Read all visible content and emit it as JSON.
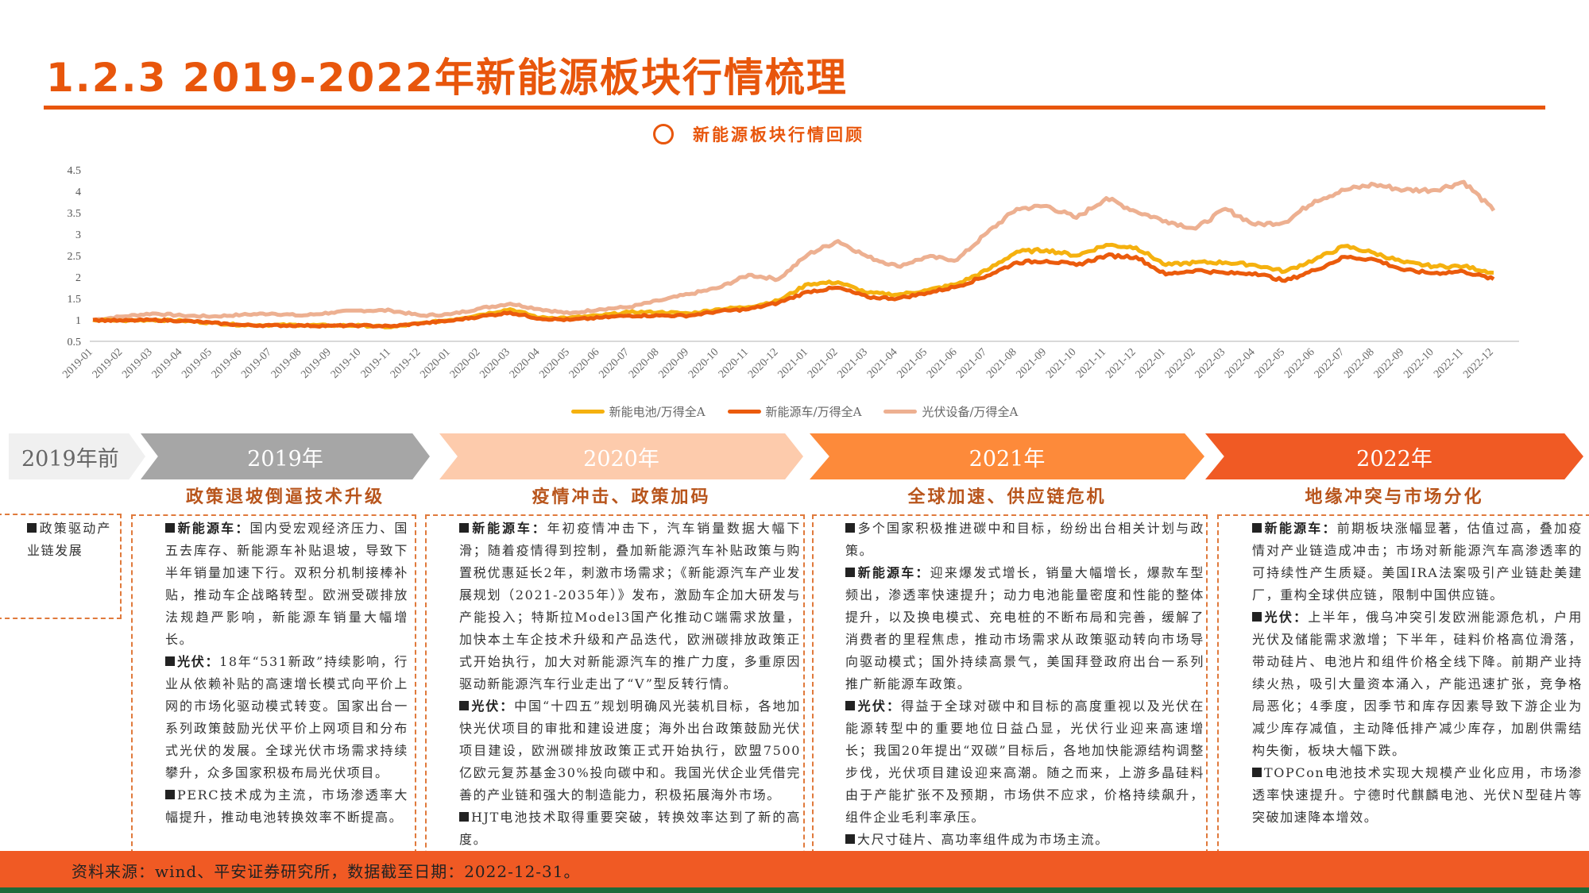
{
  "header": {
    "title": "1.2.3 2019-2022年新能源板块行情梳理",
    "subtitle": "新能源板块行情回顾"
  },
  "colors": {
    "accent": "#E8560C",
    "battery": "#F5B10F",
    "vehicle": "#EB5B0C",
    "pv": "#EDB091"
  },
  "chart_data": {
    "type": "line",
    "title": "",
    "xlabel": "",
    "ylabel": "",
    "ylim": [
      0.5,
      4.5
    ],
    "yticks": [
      "0.5",
      "1",
      "1.5",
      "2",
      "2.5",
      "3",
      "3.5",
      "4",
      "4.5"
    ],
    "grid": false,
    "legend_position": "bottom",
    "x": [
      "2019-01",
      "2019-02",
      "2019-03",
      "2019-04",
      "2019-05",
      "2019-06",
      "2019-07",
      "2019-08",
      "2019-09",
      "2019-10",
      "2019-11",
      "2019-12",
      "2020-01",
      "2020-02",
      "2020-03",
      "2020-04",
      "2020-05",
      "2020-06",
      "2020-07",
      "2020-08",
      "2020-09",
      "2020-10",
      "2020-11",
      "2020-12",
      "2021-01",
      "2021-02",
      "2021-03",
      "2021-04",
      "2021-05",
      "2021-06",
      "2021-07",
      "2021-08",
      "2021-09",
      "2021-10",
      "2021-11",
      "2021-12",
      "2022-01",
      "2022-02",
      "2022-03",
      "2022-04",
      "2022-05",
      "2022-06",
      "2022-07",
      "2022-08",
      "2022-09",
      "2022-10",
      "2022-11",
      "2022-12"
    ],
    "series": [
      {
        "name": "新能电池/万得全A",
        "color": "#F5B10F",
        "values": [
          1.0,
          0.98,
          1.0,
          0.98,
          0.93,
          0.88,
          0.88,
          0.88,
          0.87,
          0.87,
          0.83,
          0.92,
          1.0,
          1.12,
          1.25,
          1.05,
          1.05,
          1.1,
          1.18,
          1.18,
          1.15,
          1.25,
          1.3,
          1.45,
          1.84,
          1.88,
          1.63,
          1.59,
          1.69,
          1.84,
          2.16,
          2.59,
          2.63,
          2.5,
          2.75,
          2.69,
          2.28,
          2.34,
          2.34,
          2.28,
          2.13,
          2.41,
          2.72,
          2.56,
          2.34,
          2.25,
          2.25,
          2.1
        ]
      },
      {
        "name": "新能源车/万得全A",
        "color": "#EB5B0C",
        "values": [
          1.0,
          0.98,
          1.0,
          0.98,
          0.93,
          0.88,
          0.87,
          0.87,
          0.86,
          0.87,
          0.85,
          0.92,
          0.98,
          1.08,
          1.17,
          1.03,
          1.0,
          1.05,
          1.1,
          1.1,
          1.1,
          1.2,
          1.25,
          1.4,
          1.66,
          1.75,
          1.53,
          1.5,
          1.63,
          1.78,
          2.03,
          2.34,
          2.38,
          2.28,
          2.5,
          2.47,
          2.06,
          2.16,
          2.09,
          2.09,
          1.91,
          2.16,
          2.47,
          2.41,
          2.16,
          2.09,
          2.13,
          1.95
        ]
      },
      {
        "name": "光伏设备/万得全A",
        "color": "#EDB091",
        "values": [
          1.0,
          1.08,
          1.15,
          1.1,
          1.08,
          1.12,
          1.15,
          1.1,
          1.17,
          1.22,
          1.22,
          1.1,
          1.13,
          1.27,
          1.38,
          1.25,
          1.15,
          1.25,
          1.3,
          1.45,
          1.6,
          1.75,
          2.05,
          1.95,
          2.53,
          2.84,
          2.47,
          2.25,
          2.47,
          2.4,
          3.03,
          3.59,
          3.66,
          3.38,
          3.84,
          3.53,
          3.31,
          3.13,
          3.59,
          3.22,
          3.28,
          3.78,
          4.03,
          4.16,
          4.03,
          4.03,
          4.22,
          3.55
        ]
      }
    ]
  },
  "timeline": [
    {
      "label": "2019年前",
      "heading": ""
    },
    {
      "label": "2019年",
      "heading": "政策退坡倒逼技术升级"
    },
    {
      "label": "2020年",
      "heading": "疫情冲击、政策加码"
    },
    {
      "label": "2021年",
      "heading": "全球加速、供应链危机"
    },
    {
      "label": "2022年",
      "heading": "地缘冲突与市场分化"
    }
  ],
  "columns": {
    "pre2019": {
      "text": "政策驱动产业链发展"
    },
    "y2019": [
      {
        "lead": "新能源车：",
        "text": "国内受宏观经济压力、国五去库存、新能源车补贴退坡，导致下半年销量加速下行。双积分机制接棒补贴，推动车企战略转型。欧洲受碳排放法规趋严影响，新能源车销量大幅增长。"
      },
      {
        "lead": "光伏：",
        "text": "18年“531新政”持续影响，行业从依赖补贴的高速增长模式向平价上网的市场化驱动模式转变。国家出台一系列政策鼓励光伏平价上网项目和分布式光伏的发展。全球光伏市场需求持续攀升，众多国家积极布局光伏项目。"
      },
      {
        "lead": "",
        "text": "PERC技术成为主流，市场渗透率大幅提升，推动电池转换效率不断提高。"
      }
    ],
    "y2020": [
      {
        "lead": "新能源车：",
        "text": "年初疫情冲击下，汽车销量数据大幅下滑；随着疫情得到控制，叠加新能源汽车补贴政策与购置税优惠延长2年，刺激市场需求；《新能源汽车产业发展规划（2021-2035年）》发布，激励车企加大研发与产能投入；特斯拉Model3国产化推动C端需求放量，加快本土车企技术升级和产品迭代，欧洲碳排放政策正式开始执行，加大对新能源汽车的推广力度，多重原因驱动新能源汽车行业走出了“V”型反转行情。"
      },
      {
        "lead": "光伏：",
        "text": "中国“十四五”规划明确风光装机目标，各地加快光伏项目的审批和建设进度；海外出台政策鼓励光伏项目建设，欧洲碳排放政策正式开始执行，欧盟7500亿欧元复苏基金30%投向碳中和。我国光伏企业凭借完善的产业链和强大的制造能力，积极拓展海外市场。"
      },
      {
        "lead": "",
        "text": "HJT电池技术取得重要突破，转换效率达到了新的高度。"
      }
    ],
    "y2021": [
      {
        "lead": "",
        "text": "多个国家积极推进碳中和目标，纷纷出台相关计划与政策。"
      },
      {
        "lead": "新能源车：",
        "text": "迎来爆发式增长，销量大幅增长，爆款车型频出，渗透率快速提升；动力电池能量密度和性能的整体提升，以及换电模式、充电桩的不断布局和完善，缓解了消费者的里程焦虑，推动市场需求从政策驱动转向市场导向驱动模式；国外持续高景气，美国拜登政府出台一系列推广新能源车政策。"
      },
      {
        "lead": "光伏：",
        "text": "得益于全球对碳中和目标的高度重视以及光伏在能源转型中的重要地位日益凸显，光伏行业迎来高速增长；我国20年提出“双碳”目标后，各地加快能源结构调整步伐，光伏项目建设迎来高潮。随之而来，上游多晶硅料由于产能扩张不及预期，市场供不应求，价格持续飙升，组件企业毛利率承压。"
      },
      {
        "lead": "",
        "text": "大尺寸硅片、高功率组件成为市场主流。"
      }
    ],
    "y2022": [
      {
        "lead": "新能源车：",
        "text": "前期板块涨幅显著，估值过高，叠加疫情对产业链造成冲击；市场对新能源汽车高渗透率的可持续性产生质疑。美国IRA法案吸引产业链赴美建厂，重构全球供应链，限制中国供应链。"
      },
      {
        "lead": "光伏：",
        "text": "上半年，俄乌冲突引发欧洲能源危机，户用光伏及储能需求激增；下半年，硅料价格高位滑落，带动硅片、电池片和组件价格全线下降。前期产业持续火热，吸引大量资本涌入，产能迅速扩张，竞争格局恶化；4季度，因季节和库存因素导致下游企业为减少库存减值，主动降低排产减少库存，加剧供需结构失衡，板块大幅下跌。"
      },
      {
        "lead": "",
        "text": "TOPCon电池技术实现大规模产业化应用，市场渗透率快速提升。宁德时代麒麟电池、光伏N型硅片等突破加速降本增效。"
      }
    ]
  },
  "footer": {
    "source": "资料来源：wind、平安证券研究所，数据截至日期：2022-12-31。"
  }
}
